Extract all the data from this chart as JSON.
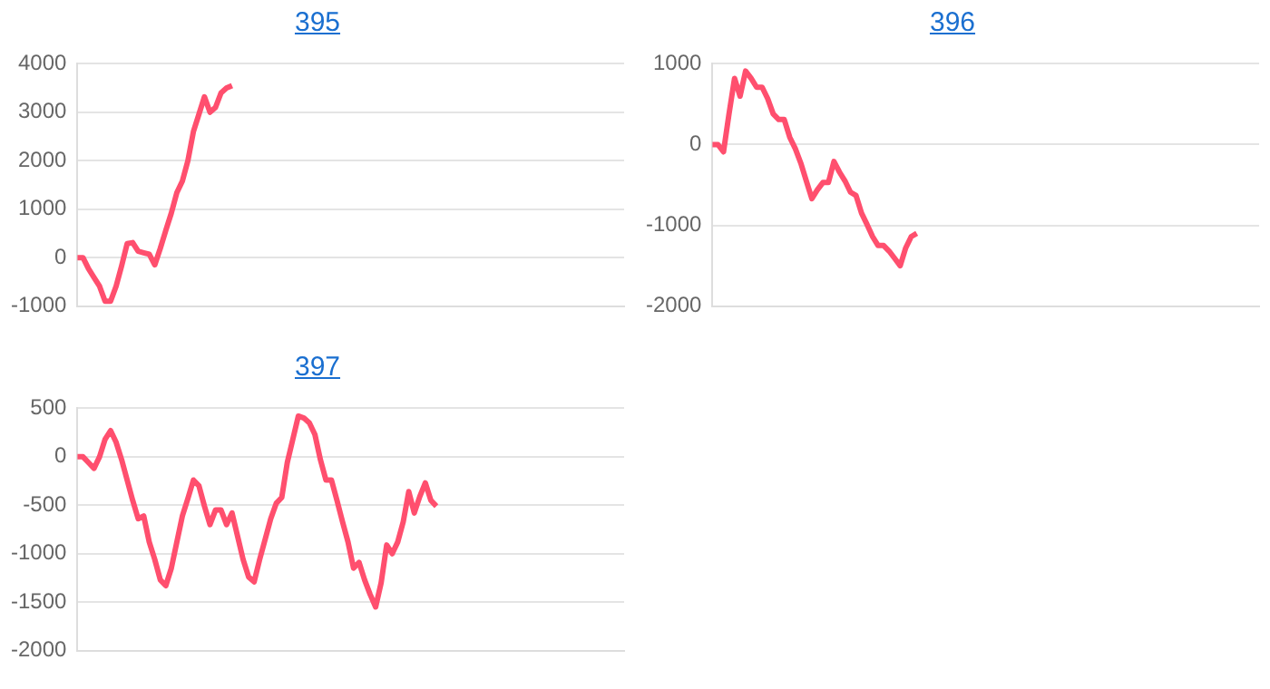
{
  "chart_data": [
    {
      "type": "line",
      "title": "395",
      "categories": [
        null,
        null,
        null,
        null,
        null,
        null,
        null,
        null,
        null,
        null,
        null,
        null,
        null,
        null,
        null,
        null,
        null,
        null,
        null,
        null,
        null,
        null,
        null,
        null,
        null,
        null,
        null,
        null,
        null,
        null,
        null,
        null,
        null,
        null,
        null,
        null,
        null,
        null,
        null,
        null,
        null,
        null,
        null,
        null,
        null,
        null,
        null,
        null,
        null,
        null,
        null,
        null,
        null,
        null,
        null,
        null,
        null,
        null,
        null,
        null,
        null,
        null,
        null,
        null,
        null,
        null,
        null,
        null,
        null,
        null,
        null,
        null,
        null,
        null,
        null,
        null,
        null,
        null,
        null,
        null,
        null,
        null,
        null,
        null,
        null,
        null,
        null,
        null,
        null,
        null,
        null,
        null,
        null,
        null,
        null,
        null,
        null,
        null,
        null,
        null
      ],
      "series": [
        {
          "color": "#ff4f6e",
          "values": [
            0,
            0,
            -230,
            -410,
            -590,
            -900,
            -900,
            -590,
            -170,
            290,
            310,
            130,
            100,
            70,
            -150,
            190,
            560,
            920,
            1340,
            1580,
            2000,
            2600,
            2960,
            3320,
            3000,
            3100,
            3400,
            3500,
            3550,
            null,
            null,
            null,
            null,
            null,
            null,
            null,
            null,
            null,
            null,
            null,
            null,
            null,
            null,
            null,
            null,
            null,
            null,
            null,
            null,
            null,
            null,
            null,
            null,
            null,
            null,
            null,
            null,
            null,
            null,
            null,
            null,
            null,
            null,
            null,
            null,
            null,
            null,
            null,
            null,
            null,
            null,
            null,
            null,
            null,
            null,
            null,
            null,
            null,
            null,
            null,
            null,
            null,
            null,
            null,
            null,
            null,
            null,
            null,
            null,
            null,
            null,
            null,
            null,
            null,
            null,
            null,
            null,
            null,
            null,
            null
          ]
        }
      ],
      "ylim": [
        -1000,
        4000
      ],
      "yticks": [
        -1000,
        0,
        1000,
        2000,
        3000,
        4000
      ],
      "grid": "y",
      "tick_labels": "y",
      "marker": "none",
      "line_style": "solid",
      "legend": false
    },
    {
      "type": "line",
      "title": "396",
      "categories": [
        null,
        null,
        null,
        null,
        null,
        null,
        null,
        null,
        null,
        null,
        null,
        null,
        null,
        null,
        null,
        null,
        null,
        null,
        null,
        null,
        null,
        null,
        null,
        null,
        null,
        null,
        null,
        null,
        null,
        null,
        null,
        null,
        null,
        null,
        null,
        null,
        null,
        null,
        null,
        null,
        null,
        null,
        null,
        null,
        null,
        null,
        null,
        null,
        null,
        null,
        null,
        null,
        null,
        null,
        null,
        null,
        null,
        null,
        null,
        null,
        null,
        null,
        null,
        null,
        null,
        null,
        null,
        null,
        null,
        null,
        null,
        null,
        null,
        null,
        null,
        null,
        null,
        null,
        null,
        null,
        null,
        null,
        null,
        null,
        null,
        null,
        null,
        null,
        null,
        null,
        null,
        null,
        null,
        null,
        null,
        null,
        null,
        null,
        null,
        null
      ],
      "series": [
        {
          "color": "#ff4f6e",
          "values": [
            0,
            0,
            -90,
            380,
            820,
            600,
            910,
            820,
            710,
            710,
            570,
            380,
            310,
            310,
            90,
            -50,
            -230,
            -450,
            -670,
            -560,
            -470,
            -470,
            -210,
            -340,
            -450,
            -590,
            -630,
            -850,
            -990,
            -1140,
            -1250,
            -1250,
            -1320,
            -1410,
            -1500,
            -1280,
            -1140,
            -1100,
            null,
            null,
            null,
            null,
            null,
            null,
            null,
            null,
            null,
            null,
            null,
            null,
            null,
            null,
            null,
            null,
            null,
            null,
            null,
            null,
            null,
            null,
            null,
            null,
            null,
            null,
            null,
            null,
            null,
            null,
            null,
            null,
            null,
            null,
            null,
            null,
            null,
            null,
            null,
            null,
            null,
            null,
            null,
            null,
            null,
            null,
            null,
            null,
            null,
            null,
            null,
            null,
            null,
            null,
            null,
            null,
            null,
            null,
            null,
            null,
            null,
            null
          ]
        }
      ],
      "ylim": [
        -2000,
        1000
      ],
      "yticks": [
        -2000,
        -1000,
        0,
        1000
      ],
      "grid": "y",
      "tick_labels": "y",
      "marker": "none",
      "line_style": "solid",
      "legend": false
    },
    {
      "type": "line",
      "title": "397",
      "categories": [
        null,
        null,
        null,
        null,
        null,
        null,
        null,
        null,
        null,
        null,
        null,
        null,
        null,
        null,
        null,
        null,
        null,
        null,
        null,
        null,
        null,
        null,
        null,
        null,
        null,
        null,
        null,
        null,
        null,
        null,
        null,
        null,
        null,
        null,
        null,
        null,
        null,
        null,
        null,
        null,
        null,
        null,
        null,
        null,
        null,
        null,
        null,
        null,
        null,
        null,
        null,
        null,
        null,
        null,
        null,
        null,
        null,
        null,
        null,
        null,
        null,
        null,
        null,
        null,
        null,
        null,
        null,
        null,
        null,
        null,
        null,
        null,
        null,
        null,
        null,
        null,
        null,
        null,
        null,
        null,
        null,
        null,
        null,
        null,
        null,
        null,
        null,
        null,
        null,
        null,
        null,
        null,
        null,
        null,
        null,
        null,
        null,
        null,
        null,
        null
      ],
      "series": [
        {
          "color": "#ff4f6e",
          "values": [
            0,
            0,
            -60,
            -120,
            0,
            180,
            270,
            150,
            -30,
            -240,
            -450,
            -640,
            -610,
            -880,
            -1060,
            -1270,
            -1330,
            -1150,
            -880,
            -610,
            -430,
            -240,
            -300,
            -510,
            -700,
            -550,
            -550,
            -700,
            -580,
            -820,
            -1060,
            -1240,
            -1290,
            -1060,
            -850,
            -640,
            -480,
            -420,
            -60,
            180,
            420,
            400,
            350,
            230,
            -30,
            -240,
            -240,
            -450,
            -670,
            -880,
            -1150,
            -1090,
            -1270,
            -1420,
            -1550,
            -1300,
            -910,
            -1000,
            -880,
            -670,
            -360,
            -580,
            -410,
            -270,
            -450,
            -510,
            null,
            null,
            null,
            null,
            null,
            null,
            null,
            null,
            null,
            null,
            null,
            null,
            null,
            null,
            null,
            null,
            null,
            null,
            null,
            null,
            null,
            null,
            null,
            null,
            null,
            null,
            null,
            null,
            null,
            null,
            null,
            null,
            null,
            null
          ]
        }
      ],
      "ylim": [
        -2000,
        500
      ],
      "yticks": [
        -2000,
        -1500,
        -1000,
        -500,
        0,
        500
      ],
      "grid": "y",
      "tick_labels": "y",
      "marker": "none",
      "line_style": "solid",
      "legend": false
    }
  ]
}
